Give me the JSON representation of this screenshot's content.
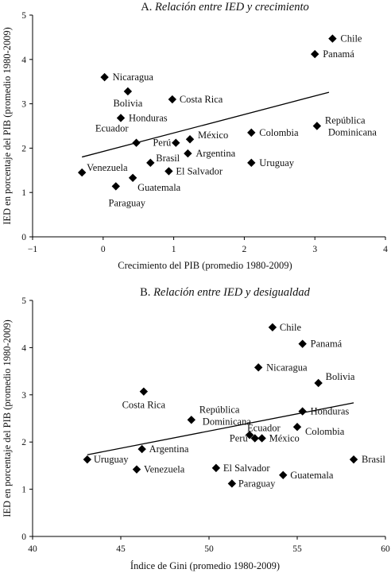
{
  "chart_data": [
    {
      "type": "scatter",
      "title_prefix": "A.",
      "title": "Relación entre IED y crecimiento",
      "xlabel": "Crecimiento del PIB (promedio 1980-2009)",
      "ylabel": "IED en porcentaje del PIB (promedio 1980-2009)",
      "xlim": [
        -1,
        4
      ],
      "ylim": [
        0,
        5
      ],
      "xticks": [
        -1,
        0,
        1,
        2,
        3,
        4
      ],
      "yticks": [
        0,
        1,
        2,
        3,
        4,
        5
      ],
      "grid": false,
      "points": [
        {
          "label": "Chile",
          "x": 3.25,
          "y": 4.47
        },
        {
          "label": "Panamá",
          "x": 3.0,
          "y": 4.12
        },
        {
          "label": "Nicaragua",
          "x": 0.02,
          "y": 3.6
        },
        {
          "label": "Bolivia",
          "x": 0.35,
          "y": 3.28
        },
        {
          "label": "Costa Rica",
          "x": 0.98,
          "y": 3.1
        },
        {
          "label": "Honduras",
          "x": 0.25,
          "y": 2.68
        },
        {
          "label": "Ecuador",
          "x": 0.47,
          "y": 2.12
        },
        {
          "label": "México",
          "x": 1.23,
          "y": 2.2
        },
        {
          "label": "Perú",
          "x": 1.03,
          "y": 2.12
        },
        {
          "label": "Colombia",
          "x": 2.1,
          "y": 2.35
        },
        {
          "label": "República Dominicana",
          "x": 3.03,
          "y": 2.5
        },
        {
          "label": "Argentina",
          "x": 1.2,
          "y": 1.88
        },
        {
          "label": "Brasil",
          "x": 0.67,
          "y": 1.67
        },
        {
          "label": "Uruguay",
          "x": 2.1,
          "y": 1.67
        },
        {
          "label": "El Salvador",
          "x": 0.93,
          "y": 1.48
        },
        {
          "label": "Venezuela",
          "x": -0.3,
          "y": 1.45
        },
        {
          "label": "Guatemala",
          "x": 0.42,
          "y": 1.33
        },
        {
          "label": "Paraguay",
          "x": 0.18,
          "y": 1.14
        }
      ],
      "trendline": {
        "x": [
          -0.3,
          3.2
        ],
        "y": [
          1.8,
          3.26
        ]
      }
    },
    {
      "type": "scatter",
      "title_prefix": "B.",
      "title": "Relación entre IED y desigualdad",
      "xlabel": "Índice de Gini (promedio 1980-2009)",
      "ylabel": "IED en porcentaje del PIB (promedio 1980-2009)",
      "xlim": [
        40,
        60
      ],
      "ylim": [
        0,
        5
      ],
      "xticks": [
        40,
        45,
        50,
        55,
        60
      ],
      "yticks": [
        0,
        1,
        2,
        3,
        4,
        5
      ],
      "grid": false,
      "points": [
        {
          "label": "Chile",
          "x": 53.6,
          "y": 4.43
        },
        {
          "label": "Panamá",
          "x": 55.3,
          "y": 4.08
        },
        {
          "label": "Nicaragua",
          "x": 52.8,
          "y": 3.58
        },
        {
          "label": "Bolivia",
          "x": 56.2,
          "y": 3.25
        },
        {
          "label": "Costa Rica",
          "x": 46.3,
          "y": 3.07
        },
        {
          "label": "República Dominicana",
          "x": 49.0,
          "y": 2.47
        },
        {
          "label": "Honduras",
          "x": 55.3,
          "y": 2.65
        },
        {
          "label": "Ecuador",
          "x": 52.3,
          "y": 2.15
        },
        {
          "label": "Perú",
          "x": 52.6,
          "y": 2.08
        },
        {
          "label": "México",
          "x": 53.0,
          "y": 2.08
        },
        {
          "label": "Colombia",
          "x": 55.0,
          "y": 2.32
        },
        {
          "label": "Argentina",
          "x": 46.2,
          "y": 1.85
        },
        {
          "label": "Uruguay",
          "x": 43.1,
          "y": 1.63
        },
        {
          "label": "Venezuela",
          "x": 45.9,
          "y": 1.42
        },
        {
          "label": "El Salvador",
          "x": 50.4,
          "y": 1.45
        },
        {
          "label": "Paraguay",
          "x": 51.3,
          "y": 1.12
        },
        {
          "label": "Guatemala",
          "x": 54.2,
          "y": 1.3
        },
        {
          "label": "Brasil",
          "x": 58.2,
          "y": 1.63
        }
      ],
      "trendline": {
        "x": [
          43.1,
          58.2
        ],
        "y": [
          1.73,
          2.83
        ]
      }
    }
  ]
}
